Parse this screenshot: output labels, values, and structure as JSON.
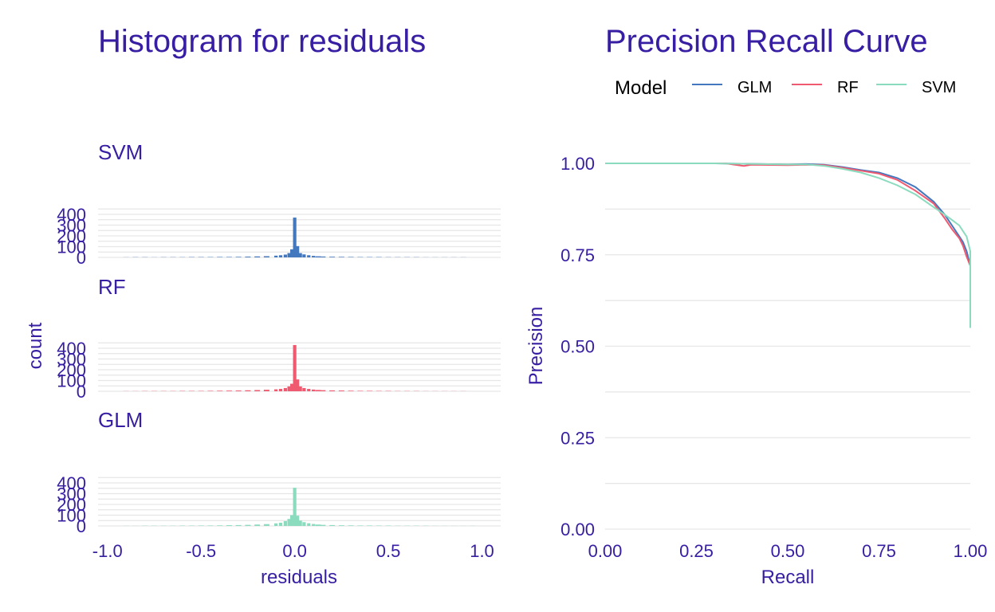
{
  "colors": {
    "text": "#371ea3",
    "grid": "#e6e6e6",
    "glm": "#4378bf",
    "rf": "#f05a71",
    "svm": "#8bdcbe"
  },
  "chart_data": [
    {
      "type": "bar",
      "title": "Histogram for residuals",
      "xlabel": "residuals",
      "ylabel": "count",
      "xlim": [
        -1.05,
        1.1
      ],
      "ylim": [
        0,
        450
      ],
      "x_ticks": [
        "-1.0",
        "-0.5",
        "0.0",
        "0.5",
        "1.0"
      ],
      "y_ticks": [
        "0",
        "100",
        "200",
        "300",
        "400"
      ],
      "grid": true,
      "panels": [
        {
          "name": "SVM",
          "color": "#4378bf",
          "bins": [
            [
              -0.9,
              1
            ],
            [
              -0.85,
              2
            ],
            [
              -0.8,
              2
            ],
            [
              -0.75,
              1
            ],
            [
              -0.7,
              2
            ],
            [
              -0.65,
              2
            ],
            [
              -0.6,
              2
            ],
            [
              -0.55,
              3
            ],
            [
              -0.5,
              3
            ],
            [
              -0.45,
              3
            ],
            [
              -0.4,
              4
            ],
            [
              -0.35,
              4
            ],
            [
              -0.3,
              5
            ],
            [
              -0.25,
              7
            ],
            [
              -0.2,
              9
            ],
            [
              -0.15,
              11
            ],
            [
              -0.1,
              16
            ],
            [
              -0.075,
              20
            ],
            [
              -0.05,
              26
            ],
            [
              -0.03,
              40
            ],
            [
              -0.015,
              75
            ],
            [
              0.0,
              370
            ],
            [
              0.015,
              105
            ],
            [
              0.03,
              40
            ],
            [
              0.05,
              28
            ],
            [
              0.075,
              20
            ],
            [
              0.1,
              14
            ],
            [
              0.125,
              10
            ],
            [
              0.15,
              8
            ],
            [
              0.2,
              6
            ],
            [
              0.25,
              5
            ],
            [
              0.3,
              4
            ],
            [
              0.35,
              3
            ],
            [
              0.4,
              3
            ],
            [
              0.45,
              3
            ],
            [
              0.5,
              2
            ],
            [
              0.55,
              2
            ],
            [
              0.6,
              2
            ],
            [
              0.65,
              2
            ],
            [
              0.7,
              1
            ],
            [
              0.75,
              1
            ],
            [
              0.8,
              1
            ],
            [
              0.85,
              1
            ],
            [
              0.9,
              1
            ]
          ]
        },
        {
          "name": "RF",
          "color": "#f05a71",
          "bins": [
            [
              -0.9,
              1
            ],
            [
              -0.85,
              1
            ],
            [
              -0.8,
              2
            ],
            [
              -0.75,
              2
            ],
            [
              -0.7,
              2
            ],
            [
              -0.65,
              2
            ],
            [
              -0.6,
              3
            ],
            [
              -0.55,
              3
            ],
            [
              -0.5,
              3
            ],
            [
              -0.45,
              4
            ],
            [
              -0.4,
              5
            ],
            [
              -0.35,
              6
            ],
            [
              -0.3,
              7
            ],
            [
              -0.25,
              9
            ],
            [
              -0.2,
              11
            ],
            [
              -0.15,
              14
            ],
            [
              -0.1,
              18
            ],
            [
              -0.075,
              22
            ],
            [
              -0.05,
              30
            ],
            [
              -0.03,
              45
            ],
            [
              -0.015,
              70
            ],
            [
              0.0,
              430
            ],
            [
              0.015,
              110
            ],
            [
              0.03,
              45
            ],
            [
              0.05,
              30
            ],
            [
              0.075,
              22
            ],
            [
              0.1,
              16
            ],
            [
              0.125,
              12
            ],
            [
              0.15,
              10
            ],
            [
              0.2,
              8
            ],
            [
              0.25,
              7
            ],
            [
              0.3,
              5
            ],
            [
              0.35,
              4
            ],
            [
              0.4,
              4
            ],
            [
              0.45,
              3
            ],
            [
              0.5,
              3
            ],
            [
              0.55,
              2
            ],
            [
              0.6,
              2
            ],
            [
              0.65,
              2
            ],
            [
              0.7,
              1
            ],
            [
              0.75,
              1
            ],
            [
              0.8,
              1
            ],
            [
              0.85,
              1
            ],
            [
              0.9,
              1
            ]
          ]
        },
        {
          "name": "GLM",
          "color": "#8bdcbe",
          "bins": [
            [
              -0.9,
              1
            ],
            [
              -0.85,
              1
            ],
            [
              -0.8,
              2
            ],
            [
              -0.75,
              2
            ],
            [
              -0.7,
              2
            ],
            [
              -0.65,
              2
            ],
            [
              -0.6,
              3
            ],
            [
              -0.55,
              3
            ],
            [
              -0.5,
              4
            ],
            [
              -0.45,
              4
            ],
            [
              -0.4,
              5
            ],
            [
              -0.35,
              7
            ],
            [
              -0.3,
              8
            ],
            [
              -0.25,
              10
            ],
            [
              -0.2,
              13
            ],
            [
              -0.15,
              17
            ],
            [
              -0.1,
              24
            ],
            [
              -0.075,
              30
            ],
            [
              -0.05,
              45
            ],
            [
              -0.03,
              65
            ],
            [
              -0.015,
              100
            ],
            [
              0.0,
              355
            ],
            [
              0.015,
              95
            ],
            [
              0.03,
              50
            ],
            [
              0.05,
              35
            ],
            [
              0.075,
              25
            ],
            [
              0.1,
              18
            ],
            [
              0.125,
              13
            ],
            [
              0.15,
              10
            ],
            [
              0.2,
              8
            ],
            [
              0.25,
              6
            ],
            [
              0.3,
              5
            ],
            [
              0.35,
              4
            ],
            [
              0.4,
              4
            ],
            [
              0.45,
              3
            ],
            [
              0.5,
              3
            ],
            [
              0.55,
              2
            ],
            [
              0.6,
              2
            ],
            [
              0.65,
              2
            ],
            [
              0.7,
              2
            ],
            [
              0.75,
              1
            ],
            [
              0.8,
              1
            ],
            [
              0.85,
              1
            ],
            [
              0.9,
              1
            ],
            [
              0.95,
              1
            ]
          ]
        }
      ]
    },
    {
      "type": "line",
      "title": "Precision Recall Curve",
      "xlabel": "Recall",
      "ylabel": "Precision",
      "xlim": [
        0,
        1
      ],
      "ylim": [
        0,
        1
      ],
      "x_ticks": [
        "0.00",
        "0.25",
        "0.50",
        "0.75",
        "1.00"
      ],
      "y_ticks": [
        "0.00",
        "0.25",
        "0.50",
        "0.75",
        "1.00"
      ],
      "grid": true,
      "legend": {
        "title": "Model",
        "position": "top"
      },
      "series": [
        {
          "name": "GLM",
          "color": "#4378bf",
          "points": [
            [
              0.0,
              1.0
            ],
            [
              0.3,
              1.0
            ],
            [
              0.5,
              0.997
            ],
            [
              0.55,
              0.998
            ],
            [
              0.6,
              0.996
            ],
            [
              0.65,
              0.99
            ],
            [
              0.7,
              0.982
            ],
            [
              0.75,
              0.975
            ],
            [
              0.8,
              0.96
            ],
            [
              0.85,
              0.935
            ],
            [
              0.9,
              0.895
            ],
            [
              0.93,
              0.86
            ],
            [
              0.95,
              0.83
            ],
            [
              0.97,
              0.8
            ],
            [
              0.98,
              0.785
            ],
            [
              0.99,
              0.76
            ],
            [
              0.995,
              0.74
            ],
            [
              1.0,
              0.72
            ],
            [
              1.0,
              0.6
            ]
          ]
        },
        {
          "name": "RF",
          "color": "#f05a71",
          "points": [
            [
              0.0,
              1.0
            ],
            [
              0.33,
              1.0
            ],
            [
              0.35,
              0.997
            ],
            [
              0.38,
              0.993
            ],
            [
              0.4,
              0.996
            ],
            [
              0.5,
              0.995
            ],
            [
              0.55,
              0.996
            ],
            [
              0.6,
              0.995
            ],
            [
              0.65,
              0.988
            ],
            [
              0.7,
              0.98
            ],
            [
              0.75,
              0.972
            ],
            [
              0.8,
              0.955
            ],
            [
              0.85,
              0.925
            ],
            [
              0.9,
              0.89
            ],
            [
              0.93,
              0.85
            ],
            [
              0.95,
              0.82
            ],
            [
              0.97,
              0.795
            ],
            [
              0.98,
              0.775
            ],
            [
              0.99,
              0.745
            ],
            [
              1.0,
              0.72
            ],
            [
              1.0,
              0.63
            ]
          ]
        },
        {
          "name": "SVM",
          "color": "#8bdcbe",
          "points": [
            [
              0.0,
              1.0
            ],
            [
              0.3,
              1.0
            ],
            [
              0.5,
              0.997
            ],
            [
              0.55,
              0.997
            ],
            [
              0.6,
              0.993
            ],
            [
              0.65,
              0.985
            ],
            [
              0.7,
              0.975
            ],
            [
              0.75,
              0.96
            ],
            [
              0.8,
              0.94
            ],
            [
              0.85,
              0.915
            ],
            [
              0.9,
              0.88
            ],
            [
              0.93,
              0.86
            ],
            [
              0.95,
              0.845
            ],
            [
              0.97,
              0.83
            ],
            [
              0.98,
              0.815
            ],
            [
              0.99,
              0.8
            ],
            [
              1.0,
              0.76
            ],
            [
              1.0,
              0.55
            ]
          ]
        }
      ]
    }
  ]
}
